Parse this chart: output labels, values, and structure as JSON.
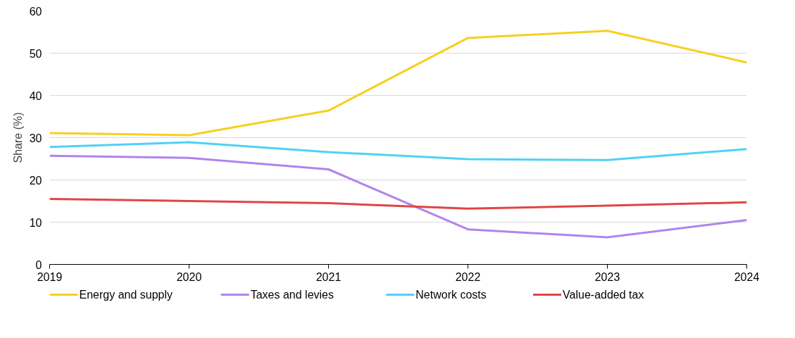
{
  "chart_data": {
    "type": "line",
    "ylabel": "Share (%)",
    "x": [
      2019,
      2020,
      2021,
      2022,
      2023,
      2024
    ],
    "xlim": [
      2019,
      2024
    ],
    "xticks": [
      2019,
      2020,
      2021,
      2022,
      2023,
      2024
    ],
    "ylim": [
      0,
      60
    ],
    "yticks": [
      0,
      10,
      20,
      30,
      40,
      50,
      60
    ],
    "grid": "y",
    "legend": "bottom",
    "marker": "none",
    "line_style": "solid",
    "series": [
      {
        "name": "Energy and supply",
        "color": "#f7cf1e",
        "values": [
          31.1,
          30.6,
          36.4,
          53.6,
          55.3,
          47.8
        ]
      },
      {
        "name": "Taxes and levies",
        "color": "#b083ee",
        "values": [
          25.7,
          25.2,
          22.5,
          8.3,
          6.4,
          10.5
        ]
      },
      {
        "name": "Network costs",
        "color": "#4fd1f7",
        "values": [
          27.8,
          28.9,
          26.6,
          24.9,
          24.7,
          27.3
        ]
      },
      {
        "name": "Value-added tax",
        "color": "#e04545",
        "values": [
          15.5,
          15.0,
          14.5,
          13.2,
          13.9,
          14.7
        ]
      }
    ]
  }
}
